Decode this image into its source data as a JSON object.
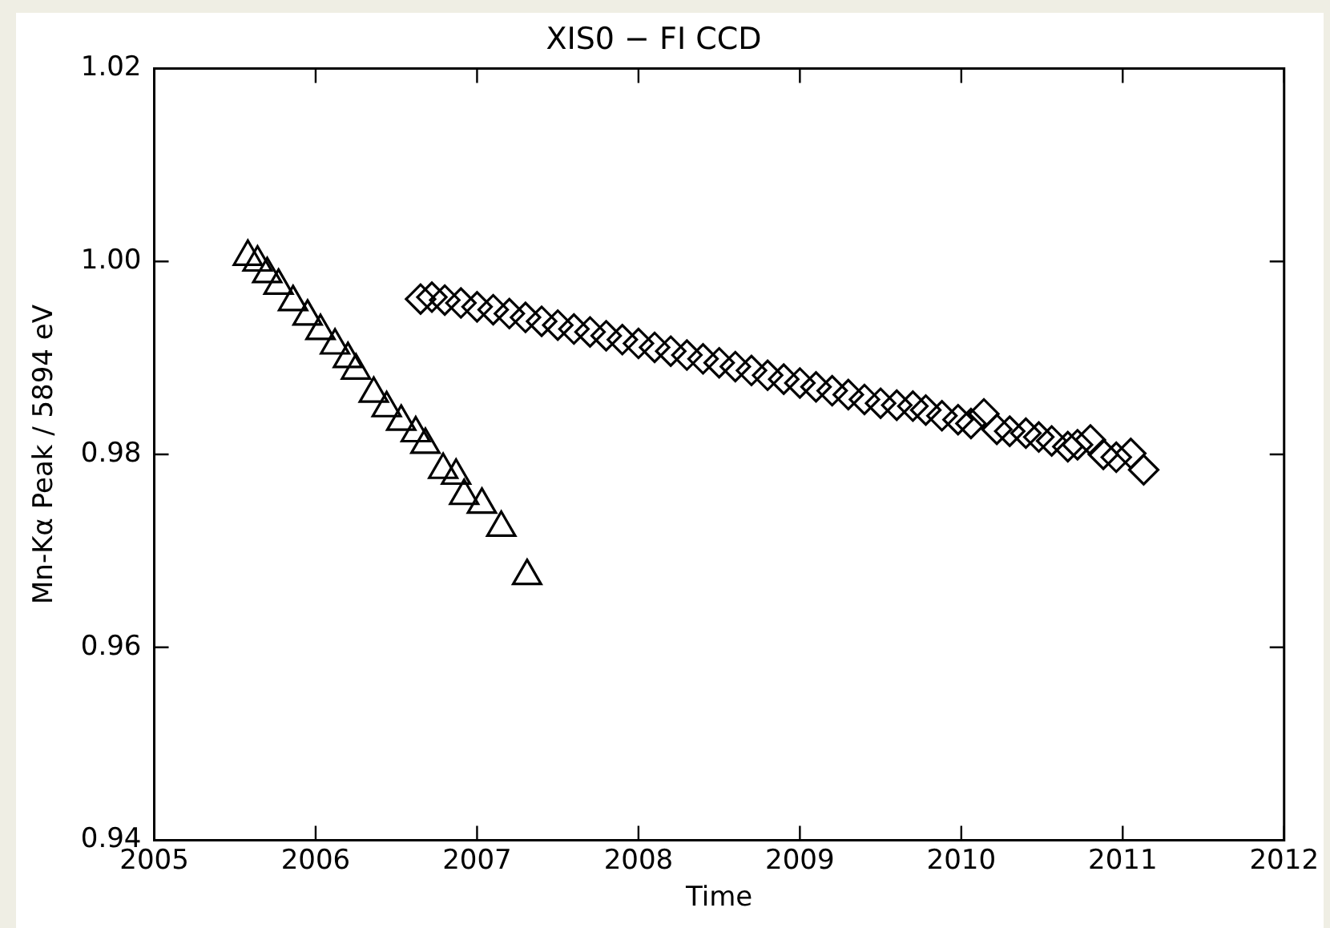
{
  "chart_data": {
    "type": "scatter",
    "title": "XIS0 − FI CCD",
    "xlabel": "Time",
    "ylabel": "Mn-Kα Peak / 5894 eV",
    "xlim": [
      2005,
      2012
    ],
    "xticks": [
      2005,
      2006,
      2007,
      2008,
      2009,
      2010,
      2011,
      2012
    ],
    "ylim": [
      0.94,
      1.02
    ],
    "yticks": [
      0.94,
      0.96,
      0.98,
      {
        "value": 1,
        "label": "1.00"
      },
      1.02
    ],
    "grid": false,
    "legend": false,
    "series": [
      {
        "color": "#000000",
        "marker": "triangle",
        "x": [
          2005.58,
          2005.64,
          2005.7,
          2005.77,
          2005.86,
          2005.95,
          2006.03,
          2006.12,
          2006.2,
          2006.25,
          2006.36,
          2006.44,
          2006.53,
          2006.62,
          2006.68,
          2006.79,
          2006.87,
          2006.92,
          2007.03,
          2007.15,
          2007.31
        ],
        "values": [
          1.0005,
          0.9999,
          0.9987,
          0.9975,
          0.9958,
          0.9943,
          0.9928,
          0.9913,
          0.9899,
          0.9887,
          0.9863,
          0.9848,
          0.9834,
          0.9822,
          0.981,
          0.9784,
          0.9778,
          0.9757,
          0.9748,
          0.9724,
          0.9674
        ]
      },
      {
        "color": "#000000",
        "marker": "diamond",
        "x": [
          2006.65,
          2006.72,
          2006.8,
          2006.9,
          2007.0,
          2007.1,
          2007.2,
          2007.3,
          2007.4,
          2007.5,
          2007.6,
          2007.7,
          2007.8,
          2007.9,
          2008.0,
          2008.1,
          2008.2,
          2008.3,
          2008.4,
          2008.5,
          2008.6,
          2008.7,
          2008.8,
          2008.9,
          2009.0,
          2009.1,
          2009.2,
          2009.3,
          2009.4,
          2009.5,
          2009.6,
          2009.7,
          2009.78,
          2009.88,
          2009.98,
          2010.06,
          2010.14,
          2010.22,
          2010.3,
          2010.4,
          2010.48,
          2010.56,
          2010.66,
          2010.72,
          2010.8,
          2010.88,
          2010.96,
          2011.05,
          2011.13
        ],
        "values": [
          0.9961,
          0.9963,
          0.996,
          0.9957,
          0.9953,
          0.995,
          0.9946,
          0.9942,
          0.9938,
          0.9934,
          0.993,
          0.9927,
          0.9923,
          0.9919,
          0.9915,
          0.9911,
          0.9907,
          0.9903,
          0.9899,
          0.9895,
          0.9891,
          0.9887,
          0.9882,
          0.9878,
          0.9874,
          0.987,
          0.9866,
          0.9862,
          0.9857,
          0.9853,
          0.9851,
          0.985,
          0.9846,
          0.984,
          0.9836,
          0.9832,
          0.9842,
          0.9826,
          0.9824,
          0.9822,
          0.9818,
          0.9814,
          0.9808,
          0.981,
          0.9815,
          0.98,
          0.9797,
          0.9801,
          0.9784
        ]
      }
    ]
  }
}
